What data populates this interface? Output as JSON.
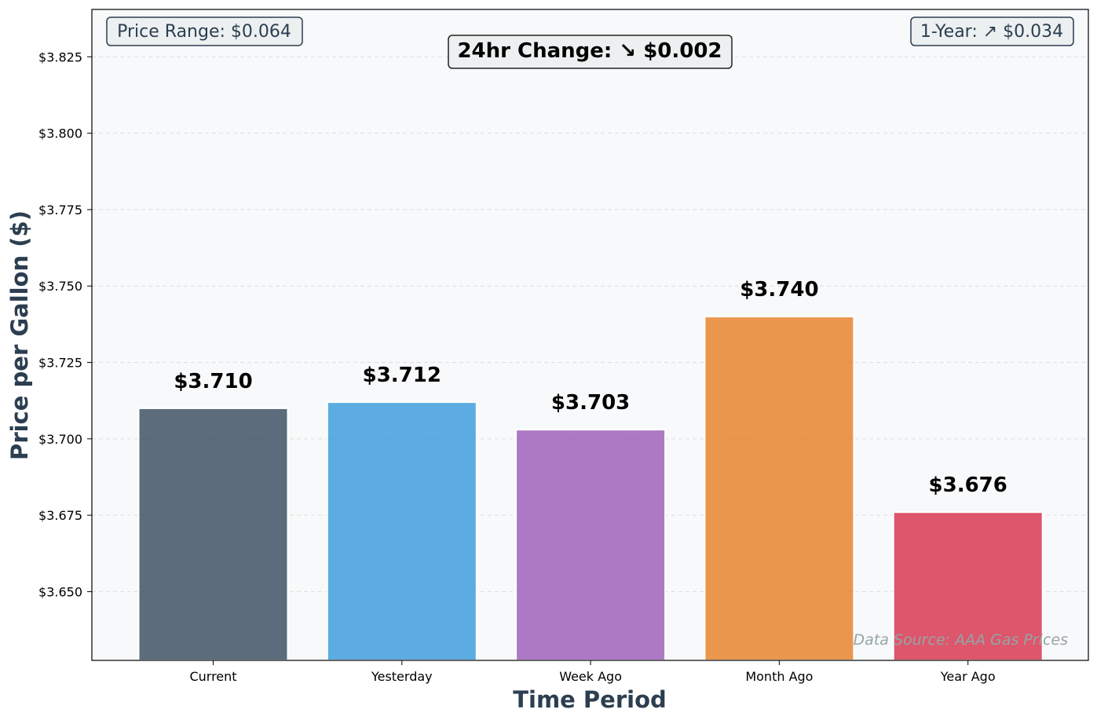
{
  "chart_data": {
    "type": "bar",
    "xlabel": "Time Period",
    "ylabel": "Price per Gallon ($)",
    "categories": [
      "Current",
      "Yesterday",
      "Week Ago",
      "Month Ago",
      "Year Ago"
    ],
    "values": [
      3.71,
      3.712,
      3.703,
      3.74,
      3.676
    ],
    "value_labels": [
      "$3.710",
      "$3.712",
      "$3.703",
      "$3.740",
      "$3.676"
    ],
    "bar_colors": [
      "#34495e",
      "#3498db",
      "#9b59b6",
      "#e67e22",
      "#d62d48"
    ],
    "ylim": [
      3.6275,
      3.8405
    ],
    "yticks": [
      3.65,
      3.675,
      3.7,
      3.725,
      3.75,
      3.775,
      3.8,
      3.825
    ],
    "ytick_labels": [
      "$3.650",
      "$3.675",
      "$3.700",
      "$3.725",
      "$3.750",
      "$3.775",
      "$3.800",
      "$3.825"
    ],
    "grid": true,
    "annotations": {
      "range": "Price Range: $0.064",
      "change_24h": "24hr Change: ↘ $0.002",
      "one_year": "1-Year: ↗ $0.034",
      "source": "Data Source: AAA Gas Prices"
    },
    "colors": {
      "plot_background": "#f8f9fa",
      "axis_label": "#2c3e50",
      "annotation_text": "#2c3e50",
      "source_text": "#95a5a6",
      "box_fill": "#ecf0f1"
    }
  }
}
